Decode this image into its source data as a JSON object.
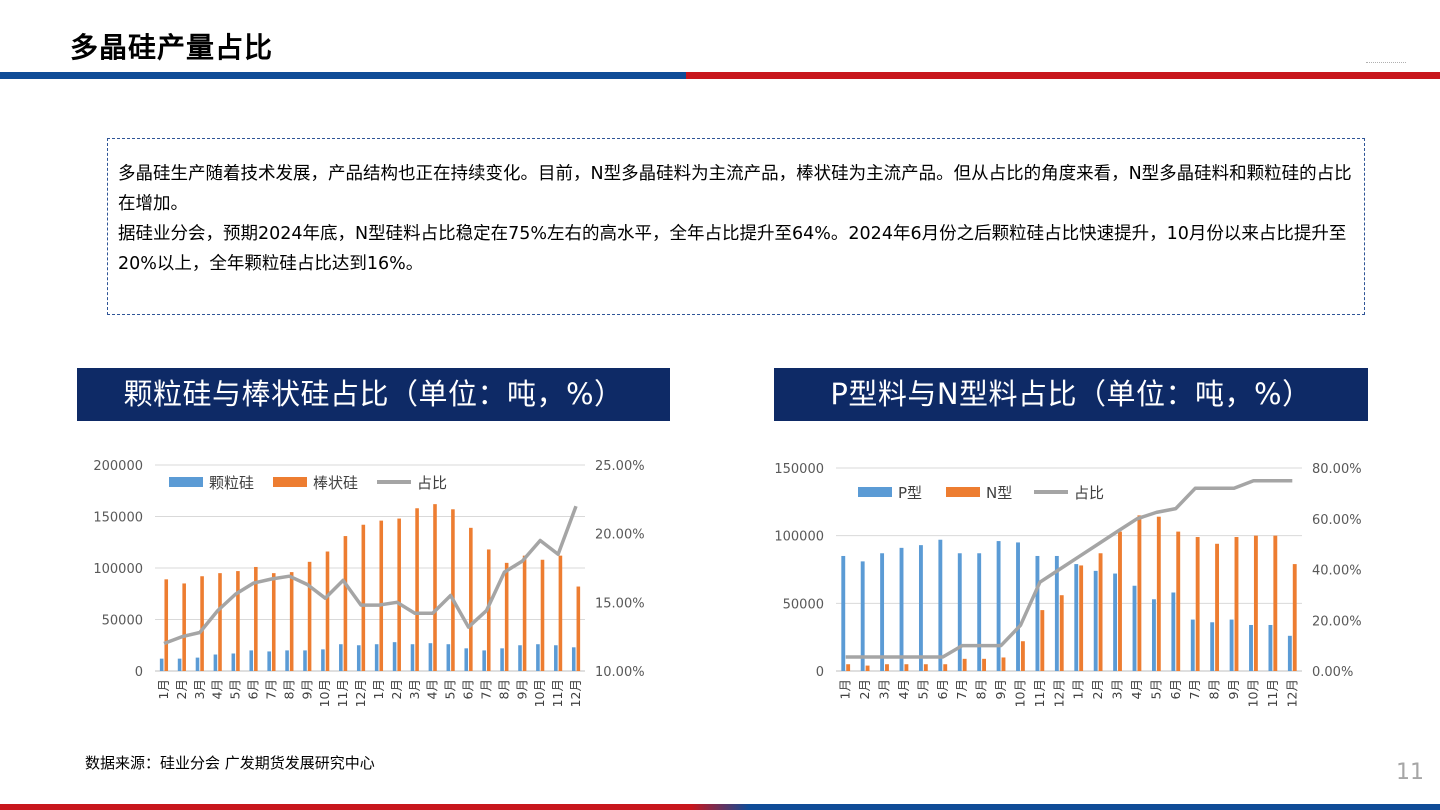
{
  "page": {
    "title": "多晶硅产量占比",
    "intro": {
      "para1": "多晶硅生产随着技术发展，产品结构也正在持续变化。目前，N型多晶硅料为主流产品，棒状硅为主流产品。但从占比的角度来看，N型多晶硅料和颗粒硅的占比在增加。",
      "para2": "据硅业分会，预期2024年底，N型硅料占比稳定在75%左右的高水平，全年占比提升至64%。2024年6月份之后颗粒硅占比快速提升，10月份以来占比提升至20%以上，全年颗粒硅占比达到16%。"
    },
    "source": "数据来源：硅业分会  广发期货发展研究中心",
    "page_number": "11"
  },
  "colors": {
    "header_blue": "#0f4c97",
    "header_red": "#c8161d",
    "panel_navy": "#0e2a66",
    "series_blue": "#5b9bd5",
    "series_orange": "#ed7d31",
    "series_gray": "#a5a5a5"
  },
  "chart_data": [
    {
      "type": "bar",
      "panel_title": "颗粒硅与棒状硅占比（单位：吨，%）",
      "categories": [
        "1月",
        "2月",
        "3月",
        "4月",
        "5月",
        "6月",
        "7月",
        "8月",
        "9月",
        "10月",
        "11月",
        "12月",
        "1月",
        "2月",
        "3月",
        "4月",
        "5月",
        "6月",
        "7月",
        "8月",
        "9月",
        "10月",
        "11月",
        "12月"
      ],
      "series": [
        {
          "name": "颗粒硅",
          "kind": "bar",
          "axis": "left",
          "values": [
            12000,
            12000,
            13000,
            16000,
            17000,
            20000,
            19000,
            20000,
            20000,
            21000,
            26000,
            25000,
            26000,
            28000,
            26000,
            27000,
            26000,
            22000,
            20000,
            22000,
            25000,
            26000,
            25000,
            23000
          ]
        },
        {
          "name": "棒状硅",
          "kind": "bar",
          "axis": "left",
          "values": [
            89000,
            85000,
            92000,
            95000,
            97000,
            101000,
            95000,
            96000,
            106000,
            116000,
            131000,
            142000,
            146000,
            148000,
            158000,
            162000,
            157000,
            139000,
            118000,
            105000,
            112000,
            108000,
            112000,
            82000
          ]
        },
        {
          "name": "占比",
          "kind": "line",
          "axis": "right",
          "values": [
            12.0,
            12.5,
            12.8,
            14.4,
            15.6,
            16.4,
            16.7,
            16.9,
            16.3,
            15.3,
            16.6,
            14.8,
            14.8,
            15.0,
            14.2,
            14.2,
            15.5,
            13.2,
            14.4,
            17.2,
            18.0,
            19.5,
            18.5,
            22.0
          ]
        }
      ],
      "y_left": {
        "min": 0,
        "max": 200000,
        "ticks": [
          "0",
          "50000",
          "100000",
          "150000",
          "200000"
        ]
      },
      "y_right": {
        "min": 10,
        "max": 25,
        "ticks": [
          "10.00%",
          "15.00%",
          "20.00%",
          "25.00%"
        ]
      },
      "legend": "top-left",
      "grid": true
    },
    {
      "type": "bar",
      "panel_title": "P型料与N型料占比（单位：吨，%）",
      "categories": [
        "1月",
        "2月",
        "3月",
        "4月",
        "5月",
        "6月",
        "7月",
        "8月",
        "9月",
        "10月",
        "11月",
        "12月",
        "1月",
        "2月",
        "3月",
        "4月",
        "5月",
        "6月",
        "7月",
        "8月",
        "9月",
        "10月",
        "11月",
        "12月"
      ],
      "series": [
        {
          "name": "P型",
          "kind": "bar",
          "axis": "left",
          "values": [
            85000,
            81000,
            87000,
            91000,
            93000,
            97000,
            87000,
            87000,
            96000,
            95000,
            85000,
            85000,
            79000,
            74000,
            72000,
            63000,
            53000,
            58000,
            38000,
            36000,
            38000,
            34000,
            34000,
            26000
          ]
        },
        {
          "name": "N型",
          "kind": "bar",
          "axis": "left",
          "values": [
            5000,
            4000,
            5000,
            5000,
            5000,
            5000,
            9000,
            9000,
            10000,
            22000,
            45000,
            56000,
            78000,
            87000,
            103000,
            115000,
            114000,
            103000,
            99000,
            94000,
            99000,
            100000,
            100000,
            79000
          ]
        },
        {
          "name": "占比",
          "kind": "line",
          "axis": "right",
          "values": [
            5.5,
            5.5,
            5.5,
            5.5,
            5.5,
            5.5,
            10.0,
            10.0,
            10.0,
            18.0,
            35.0,
            40.0,
            45.0,
            50.0,
            55.0,
            60.0,
            62.5,
            64.0,
            72.0,
            72.0,
            72.0,
            75.0,
            75.0,
            75.0
          ]
        }
      ],
      "y_left": {
        "min": 0,
        "max": 150000,
        "ticks": [
          "0",
          "50000",
          "100000",
          "150000"
        ]
      },
      "y_right": {
        "min": 0,
        "max": 80,
        "ticks": [
          "0.00%",
          "20.00%",
          "40.00%",
          "60.00%",
          "80.00%"
        ]
      },
      "legend": "top-left",
      "grid": true
    }
  ]
}
